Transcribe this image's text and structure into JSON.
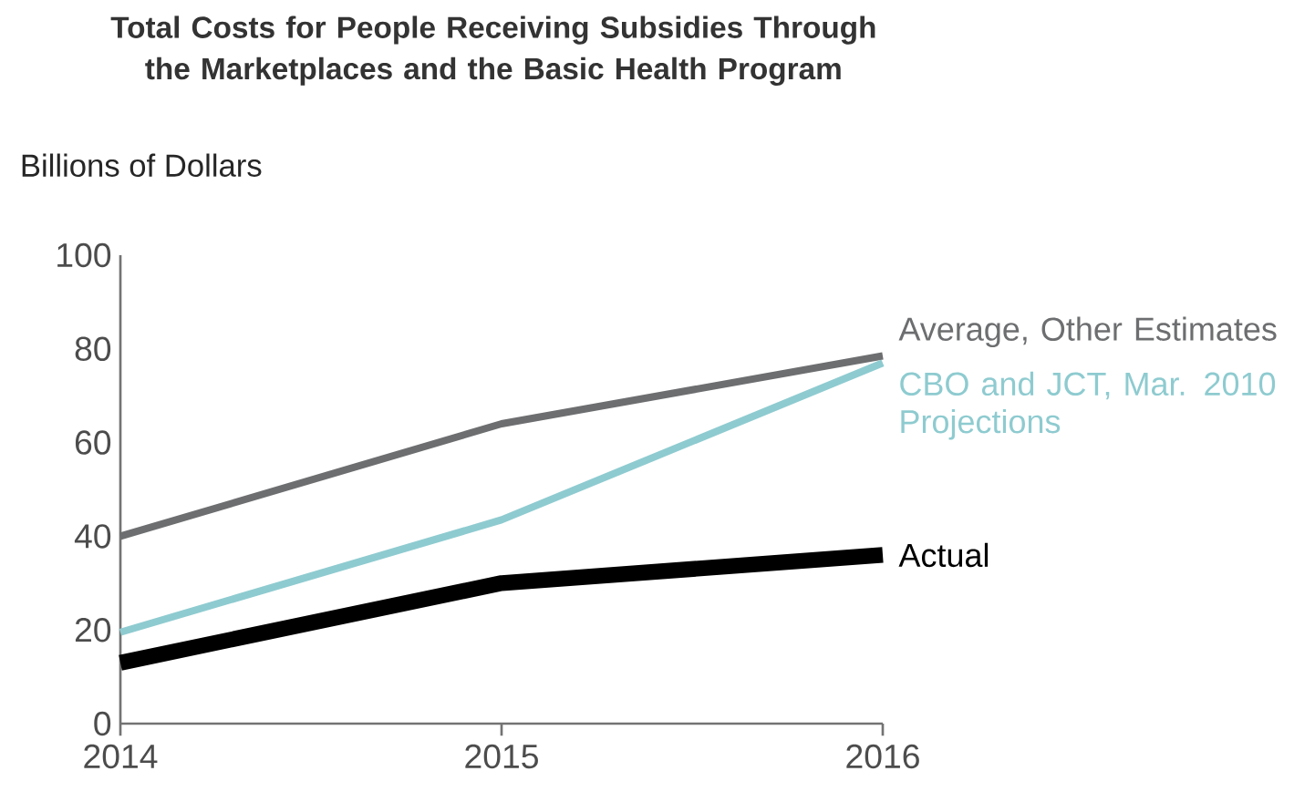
{
  "chart_data": {
    "type": "line",
    "title": "Total Costs for People Receiving Subsidies Through the Marketplaces and the Basic Health Program",
    "ylabel": "Billions of Dollars",
    "x": [
      2014,
      2015,
      2016
    ],
    "xlim": [
      2014,
      2016
    ],
    "xticks": [
      2014,
      2015,
      2016
    ],
    "ylim": [
      0,
      100
    ],
    "yticks": [
      0,
      20,
      40,
      60,
      80,
      100
    ],
    "grid": false,
    "legend": false,
    "series": [
      {
        "name": "Average, Other Estimates",
        "color": "#6d6e70",
        "values": [
          40,
          64,
          78.5
        ]
      },
      {
        "name": "CBO and JCT, Mar. 2010 Projections",
        "color": "#8ecbd0",
        "values": [
          19.5,
          43.5,
          77
        ]
      },
      {
        "name": "Actual",
        "color": "#000000",
        "values": [
          13,
          30,
          36
        ]
      }
    ]
  }
}
